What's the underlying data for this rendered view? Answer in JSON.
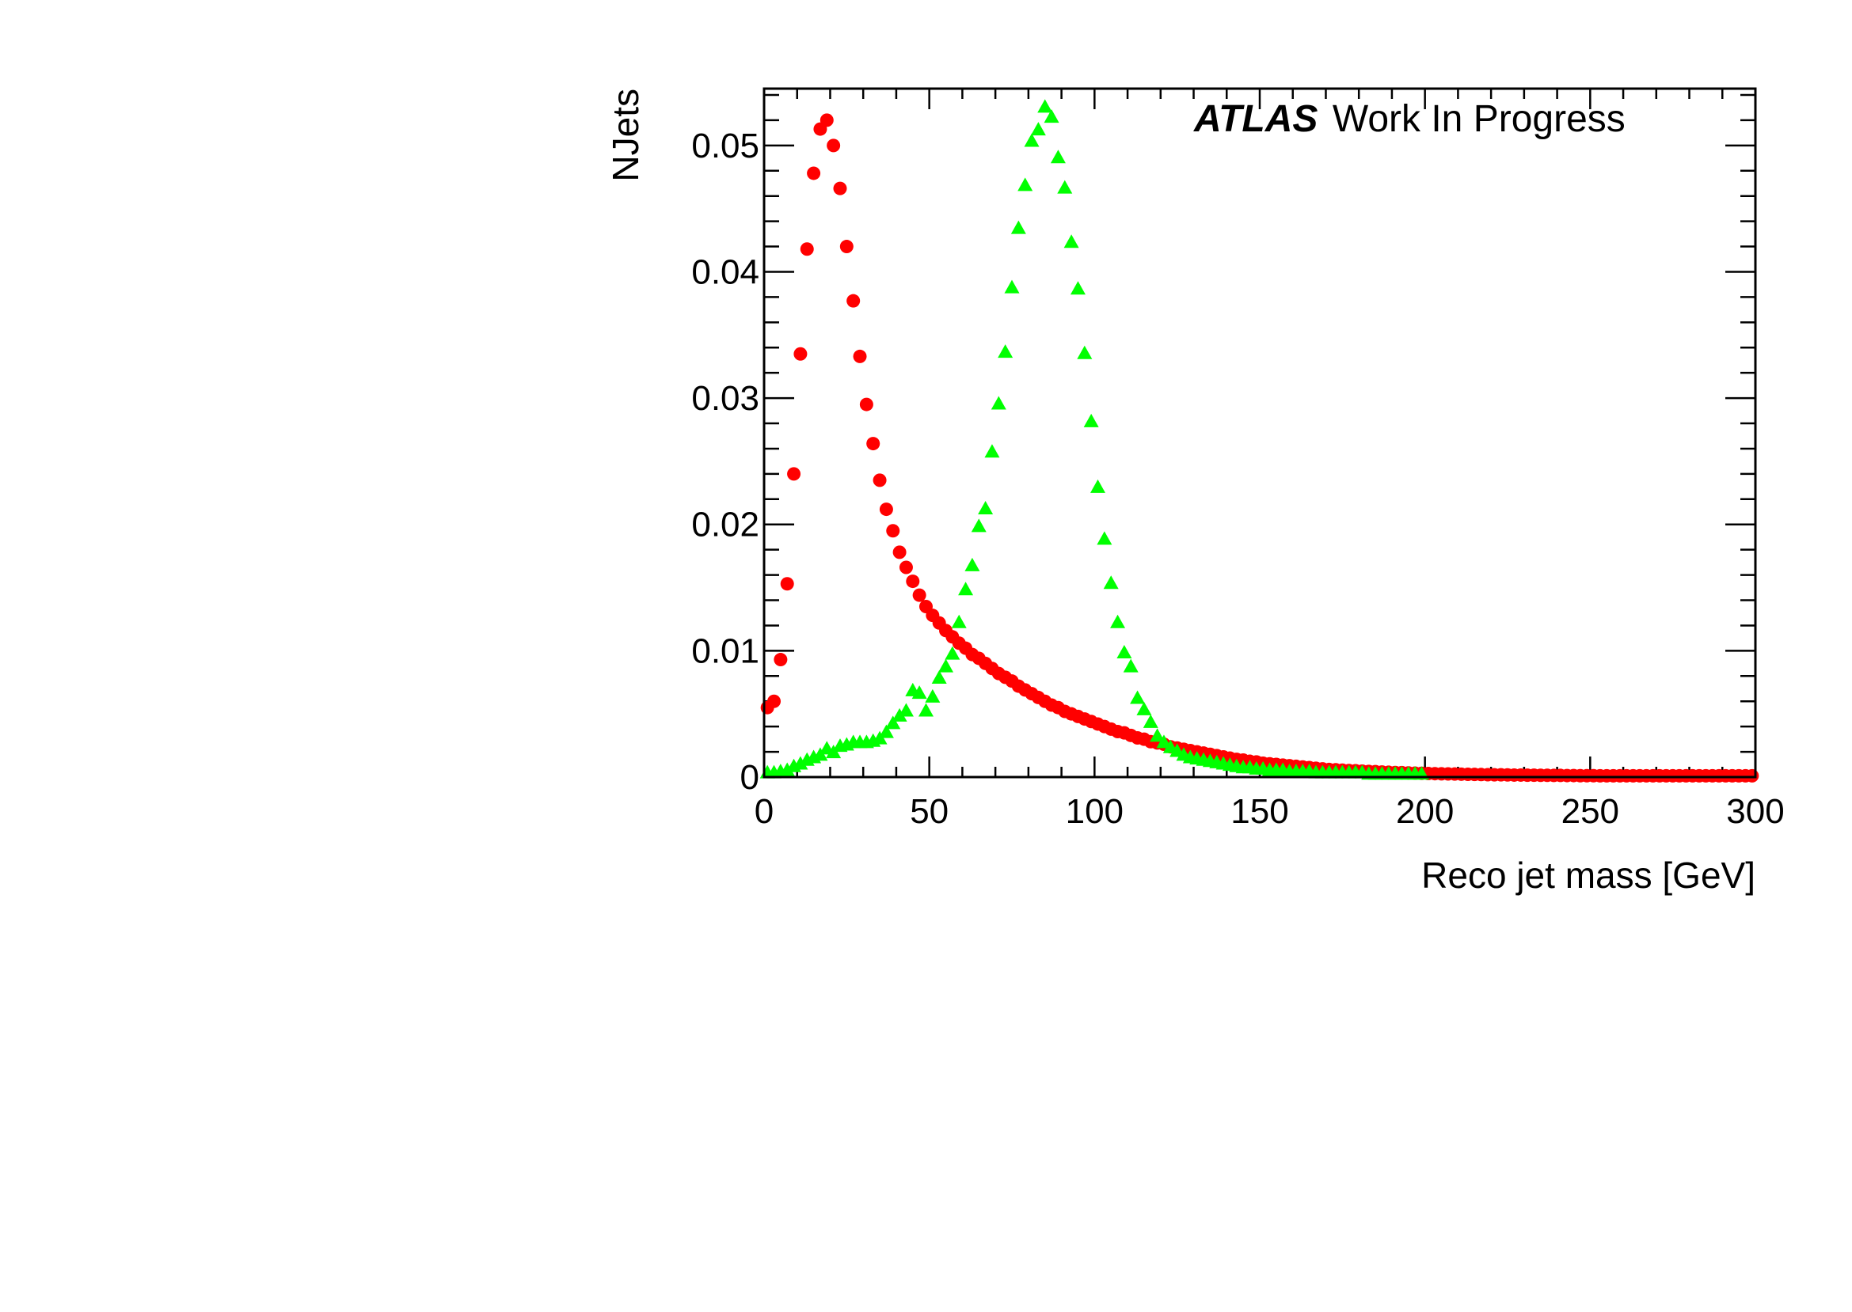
{
  "chart_data": {
    "type": "scatter",
    "title": "",
    "xlabel": "Reco jet mass [GeV]",
    "ylabel": "NJets",
    "xlim": [
      0,
      300
    ],
    "ylim": [
      0,
      0.0545
    ],
    "xticks": [
      "0",
      "50",
      "100",
      "150",
      "200",
      "250",
      "300"
    ],
    "yticks": [
      "0",
      "0.01",
      "0.02",
      "0.03",
      "0.04",
      "0.05"
    ],
    "grid": false,
    "legend": "none",
    "annotation": {
      "brand": "ATLAS",
      "text": "Work In Progress"
    },
    "bin_width": 2,
    "series": [
      {
        "marker": "circle",
        "color": "#ff0000",
        "x": [
          1,
          3,
          5,
          7,
          9,
          11,
          13,
          15,
          17,
          19,
          21,
          23,
          25,
          27,
          29,
          31,
          33,
          35,
          37,
          39,
          41,
          43,
          45,
          47,
          49,
          51,
          53,
          55,
          57,
          59,
          61,
          63,
          65,
          67,
          69,
          71,
          73,
          75,
          77,
          79,
          81,
          83,
          85,
          87,
          89,
          91,
          93,
          95,
          97,
          99,
          101,
          103,
          105,
          107,
          109,
          111,
          113,
          115,
          117,
          119,
          121,
          123,
          125,
          127,
          129,
          131,
          133,
          135,
          137,
          139,
          141,
          143,
          145,
          147,
          149,
          151,
          153,
          155,
          157,
          159,
          161,
          163,
          165,
          167,
          169,
          171,
          173,
          175,
          177,
          179,
          181,
          183,
          185,
          187,
          189,
          191,
          193,
          195,
          197,
          199,
          201,
          203,
          205,
          207,
          209,
          211,
          213,
          215,
          217,
          219,
          221,
          223,
          225,
          227,
          229,
          231,
          233,
          235,
          237,
          239,
          241,
          243,
          245,
          247,
          249,
          251,
          253,
          255,
          257,
          259,
          261,
          263,
          265,
          267,
          269,
          271,
          273,
          275,
          277,
          279,
          281,
          283,
          285,
          287,
          289,
          291,
          293,
          295,
          297,
          299
        ],
        "y": [
          0.0055,
          0.006,
          0.0093,
          0.0153,
          0.024,
          0.0335,
          0.0418,
          0.0478,
          0.0513,
          0.052,
          0.05,
          0.0466,
          0.042,
          0.0377,
          0.0333,
          0.0295,
          0.0264,
          0.0235,
          0.0212,
          0.0195,
          0.0178,
          0.0166,
          0.0155,
          0.0144,
          0.0135,
          0.0128,
          0.0122,
          0.0116,
          0.0111,
          0.0106,
          0.0102,
          0.0097,
          0.0094,
          0.009,
          0.0086,
          0.0082,
          0.0079,
          0.0076,
          0.0072,
          0.0069,
          0.0066,
          0.0063,
          0.006,
          0.0057,
          0.0055,
          0.0052,
          0.005,
          0.0048,
          0.0046,
          0.0044,
          0.0042,
          0.004,
          0.0038,
          0.0036,
          0.0035,
          0.0033,
          0.0031,
          0.003,
          0.0028,
          0.0027,
          0.0026,
          0.0024,
          0.0023,
          0.0022,
          0.0021,
          0.002,
          0.0019,
          0.0018,
          0.0017,
          0.0016,
          0.0015,
          0.0014,
          0.00135,
          0.00125,
          0.0012,
          0.0011,
          0.00105,
          0.001,
          0.00095,
          0.0009,
          0.00085,
          0.0008,
          0.00075,
          0.0007,
          0.00065,
          0.0006,
          0.00058,
          0.00055,
          0.00052,
          0.0005,
          0.00047,
          0.00045,
          0.00043,
          0.0004,
          0.00038,
          0.00036,
          0.00035,
          0.00033,
          0.00031,
          0.0003,
          0.00028,
          0.00027,
          0.00026,
          0.00025,
          0.00024,
          0.00023,
          0.00022,
          0.00021,
          0.0002,
          0.00019,
          0.00018,
          0.00018,
          0.00017,
          0.00016,
          0.00016,
          0.00015,
          0.00015,
          0.00014,
          0.00014,
          0.00013,
          0.00013,
          0.00012,
          0.00012,
          0.00011,
          0.00011,
          0.00011,
          0.0001,
          0.0001,
          0.0001,
          0.0001,
          0.0001,
          0.0001,
          0.0001,
          0.0001,
          0.0001,
          0.0001,
          0.0001,
          0.0001,
          0.0001,
          0.0001,
          0.0001,
          0.0001,
          0.0001,
          0.0001,
          0.0001,
          0.0001,
          0.0001,
          0.0001,
          0.0001,
          0.0001
        ]
      },
      {
        "marker": "triangle",
        "color": "#00ff00",
        "x": [
          1,
          3,
          5,
          7,
          9,
          11,
          13,
          15,
          17,
          19,
          21,
          23,
          25,
          27,
          29,
          31,
          33,
          35,
          37,
          39,
          41,
          43,
          45,
          47,
          49,
          51,
          53,
          55,
          57,
          59,
          61,
          63,
          65,
          67,
          69,
          71,
          73,
          75,
          77,
          79,
          81,
          83,
          85,
          87,
          89,
          91,
          93,
          95,
          97,
          99,
          101,
          103,
          105,
          107,
          109,
          111,
          113,
          115,
          117,
          119,
          121,
          123,
          125,
          127,
          129,
          131,
          133,
          135,
          137,
          139,
          141,
          143,
          145,
          147,
          149,
          151,
          153,
          155,
          157,
          159,
          161,
          163,
          165,
          167,
          169,
          171,
          173,
          175,
          177,
          179,
          181,
          183,
          185,
          187,
          189,
          191,
          193,
          195,
          197,
          199
        ],
        "y": [
          0.0003,
          0.0003,
          0.0004,
          0.0005,
          0.0008,
          0.001,
          0.0013,
          0.0015,
          0.0017,
          0.0022,
          0.0019,
          0.0024,
          0.0025,
          0.0027,
          0.0027,
          0.0027,
          0.0028,
          0.003,
          0.0035,
          0.0042,
          0.0048,
          0.0052,
          0.0068,
          0.0066,
          0.0052,
          0.0063,
          0.0078,
          0.0087,
          0.0097,
          0.0122,
          0.0148,
          0.0167,
          0.0198,
          0.0212,
          0.0257,
          0.0295,
          0.0336,
          0.0387,
          0.0434,
          0.0468,
          0.0503,
          0.0512,
          0.053,
          0.0522,
          0.049,
          0.0466,
          0.0423,
          0.0386,
          0.0335,
          0.0281,
          0.0229,
          0.0188,
          0.0153,
          0.0122,
          0.0098,
          0.0087,
          0.0062,
          0.0053,
          0.0043,
          0.0032,
          0.0027,
          0.0023,
          0.002,
          0.0017,
          0.0015,
          0.0014,
          0.0013,
          0.0012,
          0.0011,
          0.001,
          0.0009,
          0.0008,
          0.0007,
          0.0007,
          0.0006,
          0.0006,
          0.0005,
          0.0005,
          0.0005,
          0.0004,
          0.0004,
          0.0004,
          0.0004,
          0.0003,
          0.0003,
          0.0003,
          0.0003,
          0.0003,
          0.0003,
          0.0003,
          0.0003,
          0.0002,
          0.0002,
          0.0002,
          0.0002,
          0.0002,
          0.0002,
          0.0002,
          0.0002,
          0.0002
        ]
      }
    ]
  }
}
